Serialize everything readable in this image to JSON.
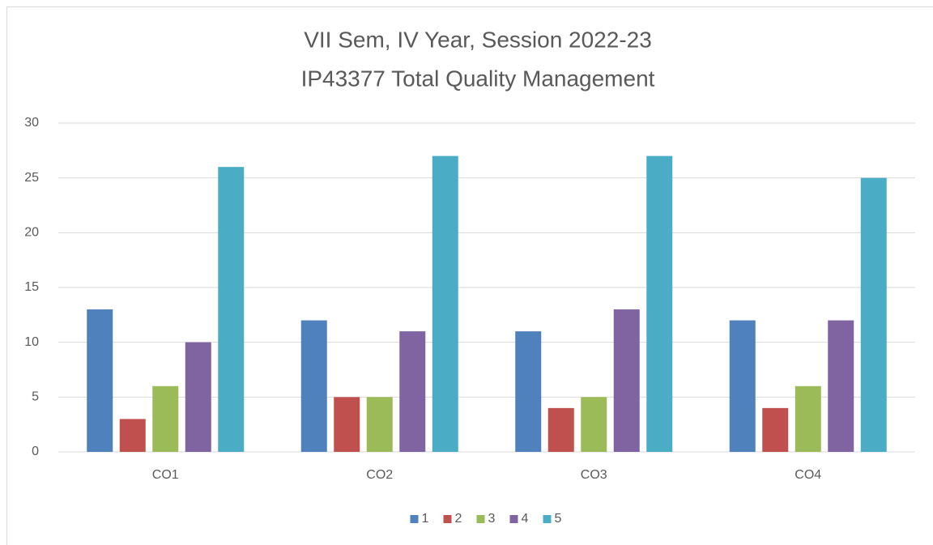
{
  "chart_data": {
    "type": "bar",
    "title": [
      "VII Sem, IV Year, Session 2022-23",
      "IP43377 Total Quality Management"
    ],
    "categories": [
      "CO1",
      "CO2",
      "CO3",
      "CO4"
    ],
    "series": [
      {
        "name": "1",
        "color": "#4f81bd",
        "values": [
          13,
          12,
          11,
          12
        ]
      },
      {
        "name": "2",
        "color": "#c0504d",
        "values": [
          3,
          5,
          4,
          4
        ]
      },
      {
        "name": "3",
        "color": "#9bbb59",
        "values": [
          6,
          5,
          5,
          6
        ]
      },
      {
        "name": "4",
        "color": "#8064a2",
        "values": [
          10,
          11,
          13,
          12
        ]
      },
      {
        "name": "5",
        "color": "#4bacc6",
        "values": [
          26,
          27,
          27,
          25
        ]
      }
    ],
    "ylim": [
      0,
      30
    ],
    "yticks": [
      0,
      5,
      10,
      15,
      20,
      25,
      30
    ],
    "grid": true,
    "legend": "bottom"
  }
}
